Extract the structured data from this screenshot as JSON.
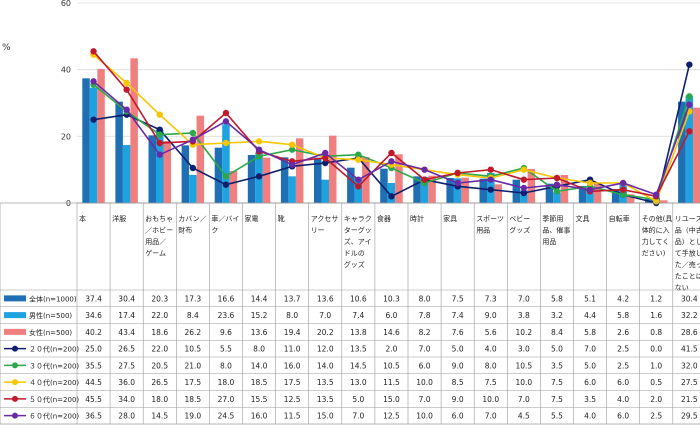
{
  "chart_data": {
    "type": "bar+line",
    "ylabel": "%",
    "ylim": [
      0,
      60
    ],
    "yticks": [
      0,
      20,
      40,
      60
    ],
    "categories": [
      [
        "本"
      ],
      [
        "洋服"
      ],
      [
        "おもちゃ",
        "／ホビー",
        "用品／",
        "ゲーム"
      ],
      [
        "カバン／",
        "財布"
      ],
      [
        "車／バイ",
        "ク"
      ],
      [
        "家電"
      ],
      [
        "靴"
      ],
      [
        "アクセサ",
        "リー"
      ],
      [
        "キャラク",
        "ターグッ",
        "ズ、アイ",
        "ドルの",
        "グッズ"
      ],
      [
        "食器"
      ],
      [
        "時計"
      ],
      [
        "家具"
      ],
      [
        "スポーツ",
        "用品"
      ],
      [
        "ベビー",
        "グッズ"
      ],
      [
        "季節用",
        "品、催事",
        "用品"
      ],
      [
        "文具"
      ],
      [
        "自転車"
      ],
      [
        "その他(具",
        "体的に入",
        "力してく",
        "ださい)"
      ],
      [
        "リユース",
        "品（中古",
        "品）とし",
        "て手放し",
        "た／売っ",
        "たことは",
        "ない"
      ]
    ],
    "bar_series": [
      {
        "name": "全体(n=1000)",
        "color": "#1f6fb5",
        "values": [
          37.4,
          30.4,
          20.3,
          17.3,
          16.6,
          14.4,
          13.7,
          13.6,
          10.6,
          10.3,
          8.0,
          7.5,
          7.3,
          7.0,
          5.8,
          5.1,
          4.2,
          1.2,
          30.4
        ]
      },
      {
        "name": "男性(n=500)",
        "color": "#1ea2e0",
        "values": [
          34.6,
          17.4,
          22.0,
          8.4,
          23.6,
          15.2,
          8.0,
          7.0,
          7.4,
          6.0,
          7.8,
          7.4,
          9.0,
          3.8,
          3.2,
          4.4,
          5.8,
          1.6,
          32.2
        ]
      },
      {
        "name": "女性(n=500)",
        "color": "#f08080",
        "values": [
          40.2,
          43.4,
          18.6,
          26.2,
          9.6,
          13.6,
          19.4,
          20.2,
          13.8,
          14.6,
          8.2,
          7.6,
          5.6,
          10.2,
          8.4,
          5.8,
          2.6,
          0.8,
          28.6
        ]
      }
    ],
    "line_series": [
      {
        "name": "２０代(n=200)",
        "color": "#0f1f6e",
        "values": [
          25.0,
          26.5,
          22.0,
          10.5,
          5.5,
          8.0,
          11.0,
          12.0,
          13.5,
          2.0,
          7.0,
          5.0,
          4.0,
          3.0,
          5.0,
          7.0,
          2.5,
          0.0,
          41.5
        ]
      },
      {
        "name": "３０代(n=200)",
        "color": "#2ca84a",
        "values": [
          35.5,
          27.5,
          20.5,
          21.0,
          8.0,
          14.0,
          16.0,
          14.0,
          14.5,
          10.5,
          6.0,
          9.0,
          8.0,
          10.5,
          3.5,
          5.0,
          2.5,
          1.0,
          32.0
        ]
      },
      {
        "name": "４０代(n=200)",
        "color": "#f7c600",
        "values": [
          44.5,
          36.0,
          26.5,
          17.5,
          18.0,
          18.5,
          17.5,
          13.5,
          13.0,
          11.5,
          10.0,
          8.5,
          7.5,
          10.0,
          7.5,
          6.0,
          6.0,
          0.5,
          27.5
        ]
      },
      {
        "name": "５０代(n=200)",
        "color": "#c0192b",
        "values": [
          45.5,
          34.0,
          18.0,
          18.5,
          27.0,
          15.5,
          12.5,
          13.5,
          5.0,
          15.0,
          7.0,
          9.0,
          10.0,
          7.0,
          7.5,
          3.5,
          4.0,
          2.0,
          21.5
        ]
      },
      {
        "name": "６０代(n=200)",
        "color": "#6a2aa6",
        "values": [
          36.5,
          28.0,
          14.5,
          19.0,
          24.5,
          16.0,
          11.5,
          15.0,
          7.0,
          12.5,
          10.0,
          6.0,
          7.0,
          4.5,
          5.5,
          4.0,
          6.0,
          2.5,
          29.5
        ]
      }
    ]
  }
}
